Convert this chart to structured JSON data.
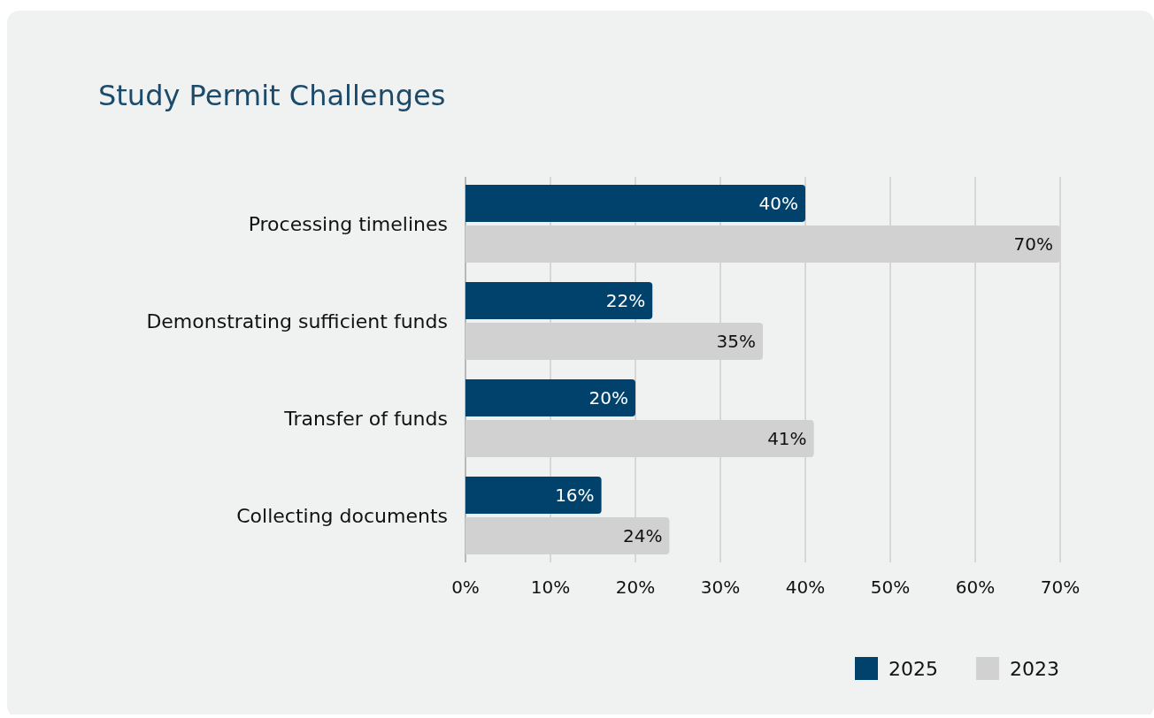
{
  "chart_data": {
    "type": "bar",
    "orientation": "horizontal",
    "title": "Study Permit Challenges",
    "categories": [
      "Processing timelines",
      "Demonstrating sufficient funds",
      "Transfer of funds",
      "Collecting documents"
    ],
    "series": [
      {
        "name": "2025",
        "color": "#00426b",
        "values": [
          40,
          22,
          20,
          16
        ],
        "value_labels": [
          "40%",
          "22%",
          "20%",
          "16%"
        ]
      },
      {
        "name": "2023",
        "color": "#d0d1d0",
        "values": [
          70,
          35,
          41,
          24
        ],
        "value_labels": [
          "70%",
          "35%",
          "41%",
          "24%"
        ]
      }
    ],
    "xlim": [
      0,
      70
    ],
    "xticks": [
      {
        "value": 0,
        "label": "0%"
      },
      {
        "value": 10,
        "label": "10%"
      },
      {
        "value": 20,
        "label": "20%"
      },
      {
        "value": 30,
        "label": "30%"
      },
      {
        "value": 40,
        "label": "40%"
      },
      {
        "value": 50,
        "label": "50%"
      },
      {
        "value": 60,
        "label": "60%"
      },
      {
        "value": 70,
        "label": "70%"
      }
    ],
    "grid": "x",
    "legend": "bottom right"
  }
}
